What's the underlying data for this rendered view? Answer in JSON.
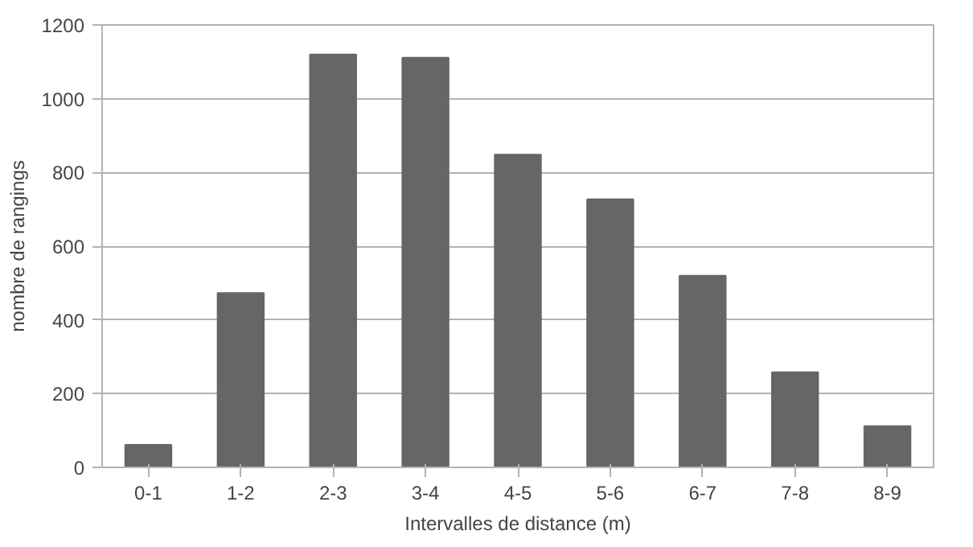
{
  "chart_data": {
    "type": "bar",
    "xlabel": "Intervalles de distance (m)",
    "ylabel": "nombre de rangings",
    "categories": [
      "0-1",
      "1-2",
      "2-3",
      "3-4",
      "4-5",
      "5-6",
      "6-7",
      "7-8",
      "8-9"
    ],
    "values": [
      61,
      473,
      1120,
      1111,
      848,
      727,
      520,
      258,
      112
    ],
    "color": "#666666",
    "ylim": [
      0,
      1200
    ],
    "yticks": [
      0,
      200,
      400,
      600,
      800,
      1000,
      1200
    ],
    "grid": "y"
  }
}
